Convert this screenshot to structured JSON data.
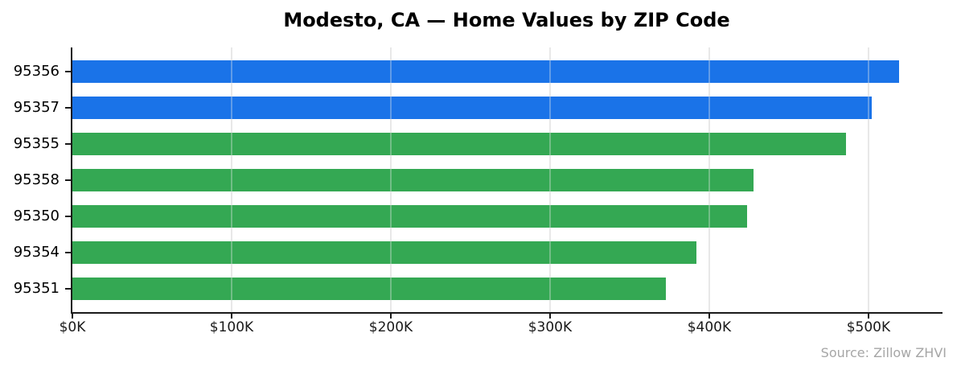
{
  "title": "Modesto, CA — Home Values by ZIP Code",
  "source_note": "Source: Zillow ZHVI",
  "colors": {
    "highlight_bar": "#1a73e8",
    "default_bar": "#34a853",
    "grid": "#e8e8e8",
    "axis": "#1a1a1a",
    "source_text": "#a6a6a6"
  },
  "chart_data": {
    "type": "bar",
    "orientation": "horizontal",
    "title": "Modesto, CA — Home Values by ZIP Code",
    "xlabel": "",
    "ylabel": "",
    "categories": [
      "95356",
      "95357",
      "95355",
      "95358",
      "95350",
      "95354",
      "95351"
    ],
    "values": [
      519,
      502,
      486,
      428,
      424,
      392,
      373
    ],
    "value_unit": "thousand USD",
    "bar_colors": [
      "#1a73e8",
      "#1a73e8",
      "#34a853",
      "#34a853",
      "#34a853",
      "#34a853",
      "#34a853"
    ],
    "x_tick_values": [
      0,
      100,
      200,
      300,
      400,
      500
    ],
    "x_tick_labels": [
      "$0K",
      "$100K",
      "$200K",
      "$300K",
      "$400K",
      "$500K"
    ],
    "xlim": [
      0,
      546
    ],
    "grid": true,
    "legend": "none"
  }
}
